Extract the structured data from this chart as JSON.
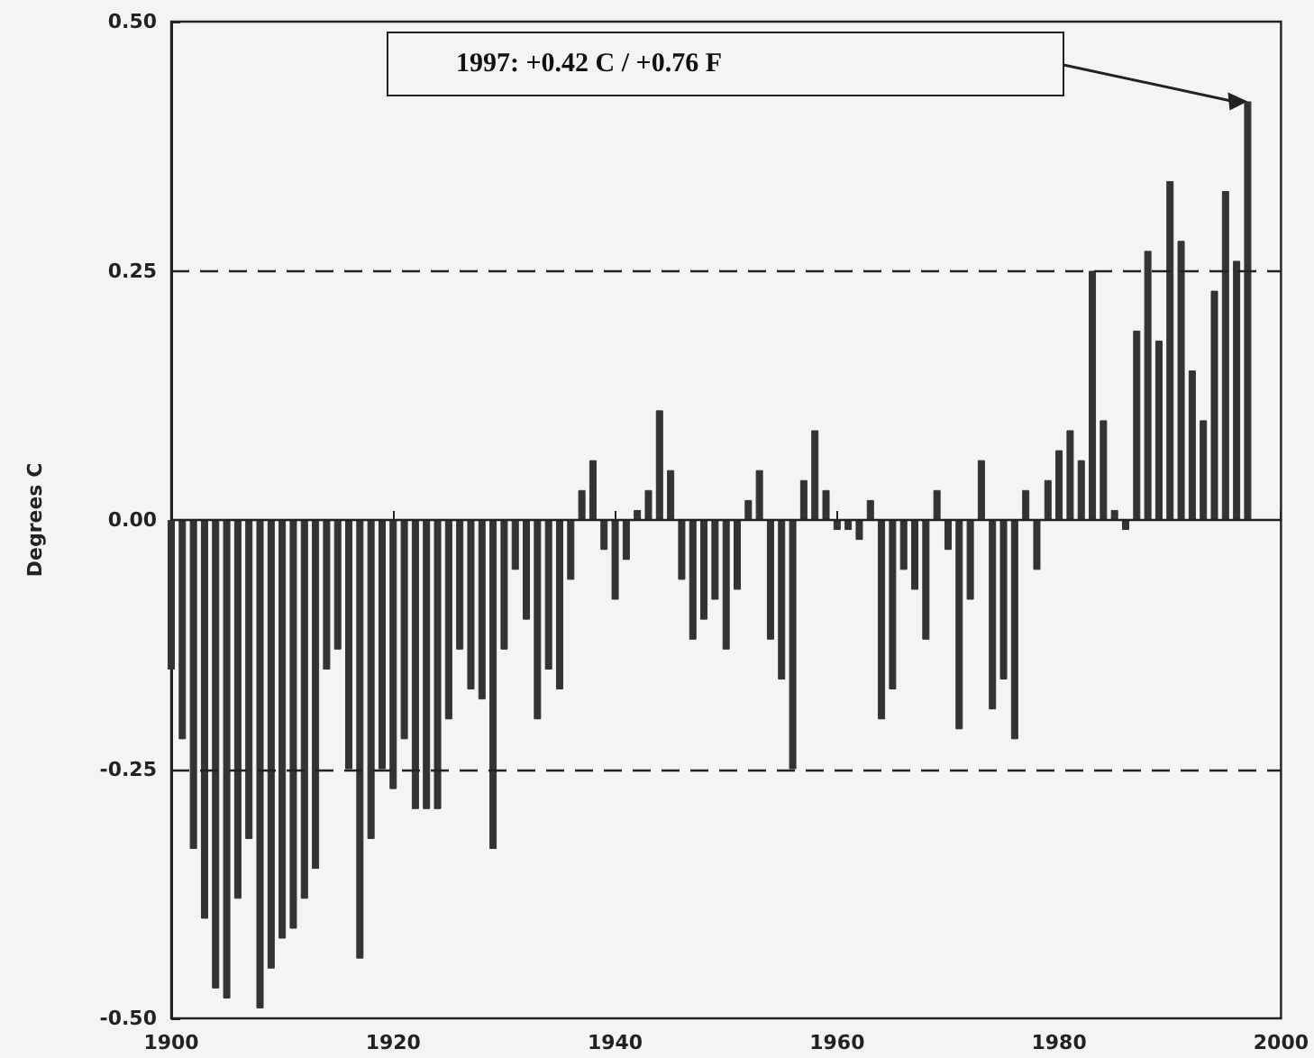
{
  "chart_data": {
    "type": "bar",
    "ylabel": "Degrees C",
    "x": [
      1900,
      1901,
      1902,
      1903,
      1904,
      1905,
      1906,
      1907,
      1908,
      1909,
      1910,
      1911,
      1912,
      1913,
      1914,
      1915,
      1916,
      1917,
      1918,
      1919,
      1920,
      1921,
      1922,
      1923,
      1924,
      1925,
      1926,
      1927,
      1928,
      1929,
      1930,
      1931,
      1932,
      1933,
      1934,
      1935,
      1936,
      1937,
      1938,
      1939,
      1940,
      1941,
      1942,
      1943,
      1944,
      1945,
      1946,
      1947,
      1948,
      1949,
      1950,
      1951,
      1952,
      1953,
      1954,
      1955,
      1956,
      1957,
      1958,
      1959,
      1960,
      1961,
      1962,
      1963,
      1964,
      1965,
      1966,
      1967,
      1968,
      1969,
      1970,
      1971,
      1972,
      1973,
      1974,
      1975,
      1976,
      1977,
      1978,
      1979,
      1980,
      1981,
      1982,
      1983,
      1984,
      1985,
      1986,
      1987,
      1988,
      1989,
      1990,
      1991,
      1992,
      1993,
      1994,
      1995,
      1996,
      1997
    ],
    "series": [
      {
        "color": "#333333",
        "values": [
          -0.15,
          -0.22,
          -0.33,
          -0.4,
          -0.47,
          -0.48,
          -0.38,
          -0.32,
          -0.49,
          -0.45,
          -0.42,
          -0.41,
          -0.38,
          -0.35,
          -0.15,
          -0.13,
          -0.25,
          -0.44,
          -0.32,
          -0.25,
          -0.27,
          -0.22,
          -0.29,
          -0.29,
          -0.29,
          -0.2,
          -0.13,
          -0.17,
          -0.18,
          -0.33,
          -0.13,
          -0.05,
          -0.1,
          -0.2,
          -0.15,
          -0.17,
          -0.06,
          0.03,
          0.06,
          -0.03,
          -0.08,
          -0.04,
          0.01,
          0.03,
          0.11,
          0.05,
          -0.06,
          -0.12,
          -0.1,
          -0.08,
          -0.13,
          -0.07,
          0.02,
          0.05,
          -0.12,
          -0.16,
          -0.25,
          0.04,
          0.09,
          0.03,
          -0.01,
          -0.01,
          -0.02,
          0.02,
          -0.2,
          -0.17,
          -0.05,
          -0.07,
          -0.12,
          0.03,
          -0.03,
          -0.21,
          -0.08,
          0.06,
          -0.19,
          -0.16,
          -0.22,
          0.03,
          -0.05,
          0.04,
          0.07,
          0.09,
          0.06,
          0.25,
          0.1,
          0.01,
          -0.01,
          0.19,
          0.27,
          0.18,
          0.34,
          0.28,
          0.15,
          0.1,
          0.23,
          0.33,
          0.26,
          0.42
        ]
      }
    ],
    "xlim": [
      1900,
      2000
    ],
    "xticks": [
      1900,
      1920,
      1940,
      1960,
      1980,
      2000
    ],
    "ylim": [
      -0.5,
      0.5
    ],
    "yticks": [
      {
        "value": -0.5,
        "label": "-0.50"
      },
      {
        "value": -0.25,
        "label": "-0.25"
      },
      {
        "value": 0,
        "label": "0.00"
      },
      {
        "value": 0.25,
        "label": "0.25"
      },
      {
        "value": 0.5,
        "label": "0.50"
      }
    ],
    "ref_lines": [
      {
        "axis": "y",
        "value": 0.25,
        "line_style": "dashed",
        "color": "#222222"
      },
      {
        "axis": "y",
        "value": -0.25,
        "line_style": "dashed",
        "color": "#222222"
      },
      {
        "axis": "y",
        "value": 0,
        "line_style": "solid",
        "color": "#222222"
      }
    ],
    "annotations": [
      "1997: +0.42 C / +0.76 F"
    ],
    "grid": false
  }
}
